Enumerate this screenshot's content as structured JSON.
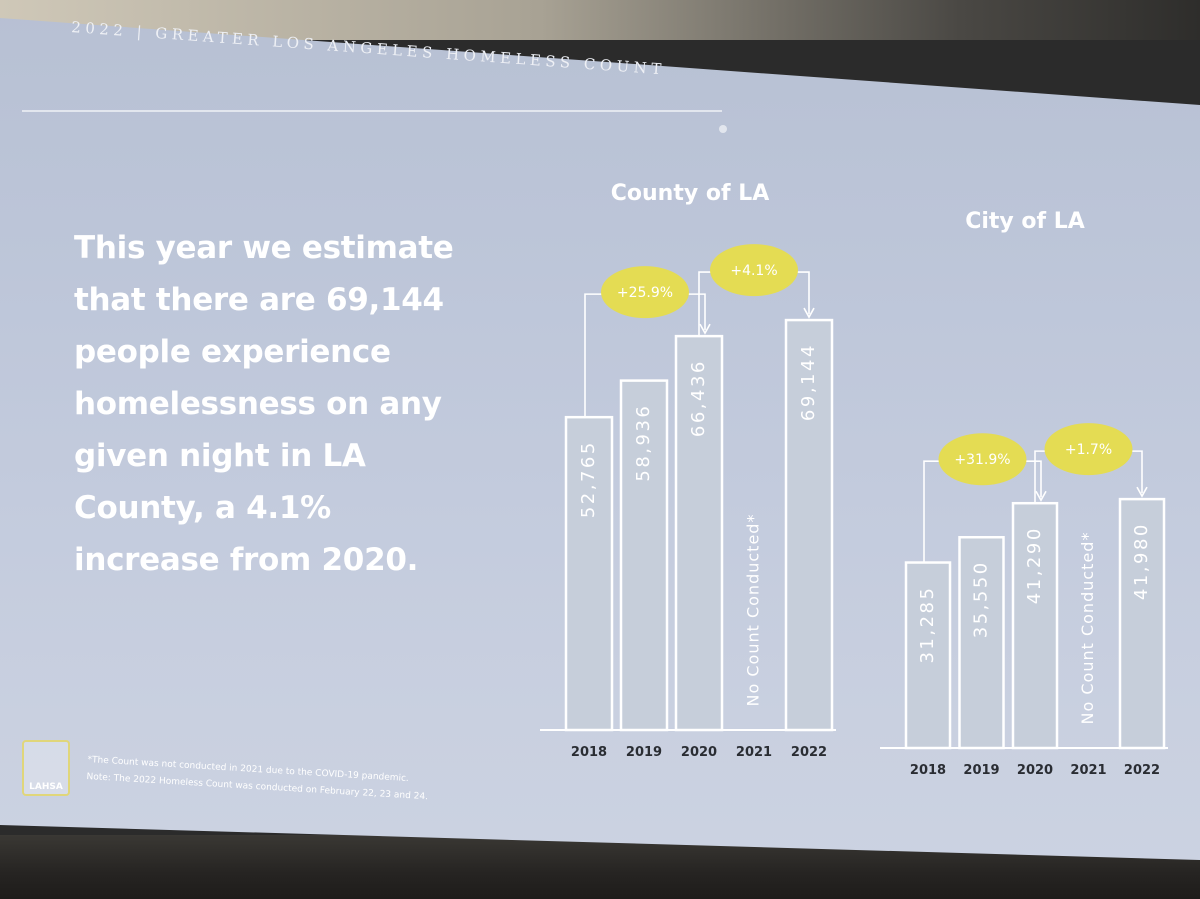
{
  "header": {
    "title": "2022 | GREATER LOS ANGELES HOMELESS COUNT"
  },
  "headline": "This year we estimate that there are 69,144 people experience homelessness on any given night in LA County, a 4.1% increase from 2020.",
  "footnote": {
    "line1": "*The Count was not conducted in 2021 due to the COVID-19 pandemic.",
    "line2": "Note: The 2022 Homeless Count was conducted on February 22, 23 and 24."
  },
  "logo": {
    "text": "LAHSA",
    "accent": "#e0d67a"
  },
  "colors": {
    "bar_fill": "#c6ceda",
    "bar_stroke": "#ffffff",
    "highlight": "#e4dc53"
  },
  "chart_data": [
    {
      "type": "bar",
      "title": "County of LA",
      "categories": [
        "2018",
        "2019",
        "2020",
        "2021",
        "2022"
      ],
      "values": [
        52765,
        58936,
        66436,
        null,
        69144
      ],
      "value_labels": [
        "52,765",
        "58,936",
        "66,436",
        "",
        "69,144"
      ],
      "missing_label": "No Count Conducted*",
      "ylim": [
        0,
        70000
      ],
      "grid": false,
      "annotations": [
        {
          "from": "2018",
          "to": "2020",
          "label": "+25.9%"
        },
        {
          "from": "2020",
          "to": "2022",
          "label": "+4.1%"
        }
      ]
    },
    {
      "type": "bar",
      "title": "City of LA",
      "categories": [
        "2018",
        "2019",
        "2020",
        "2021",
        "2022"
      ],
      "values": [
        31285,
        35550,
        41290,
        null,
        41980
      ],
      "value_labels": [
        "31,285",
        "35,550",
        "41,290",
        "",
        "41,980"
      ],
      "missing_label": "No Count Conducted*",
      "ylim": [
        0,
        70000
      ],
      "grid": false,
      "annotations": [
        {
          "from": "2018",
          "to": "2020",
          "label": "+31.9%"
        },
        {
          "from": "2020",
          "to": "2022",
          "label": "+1.7%"
        }
      ]
    }
  ]
}
